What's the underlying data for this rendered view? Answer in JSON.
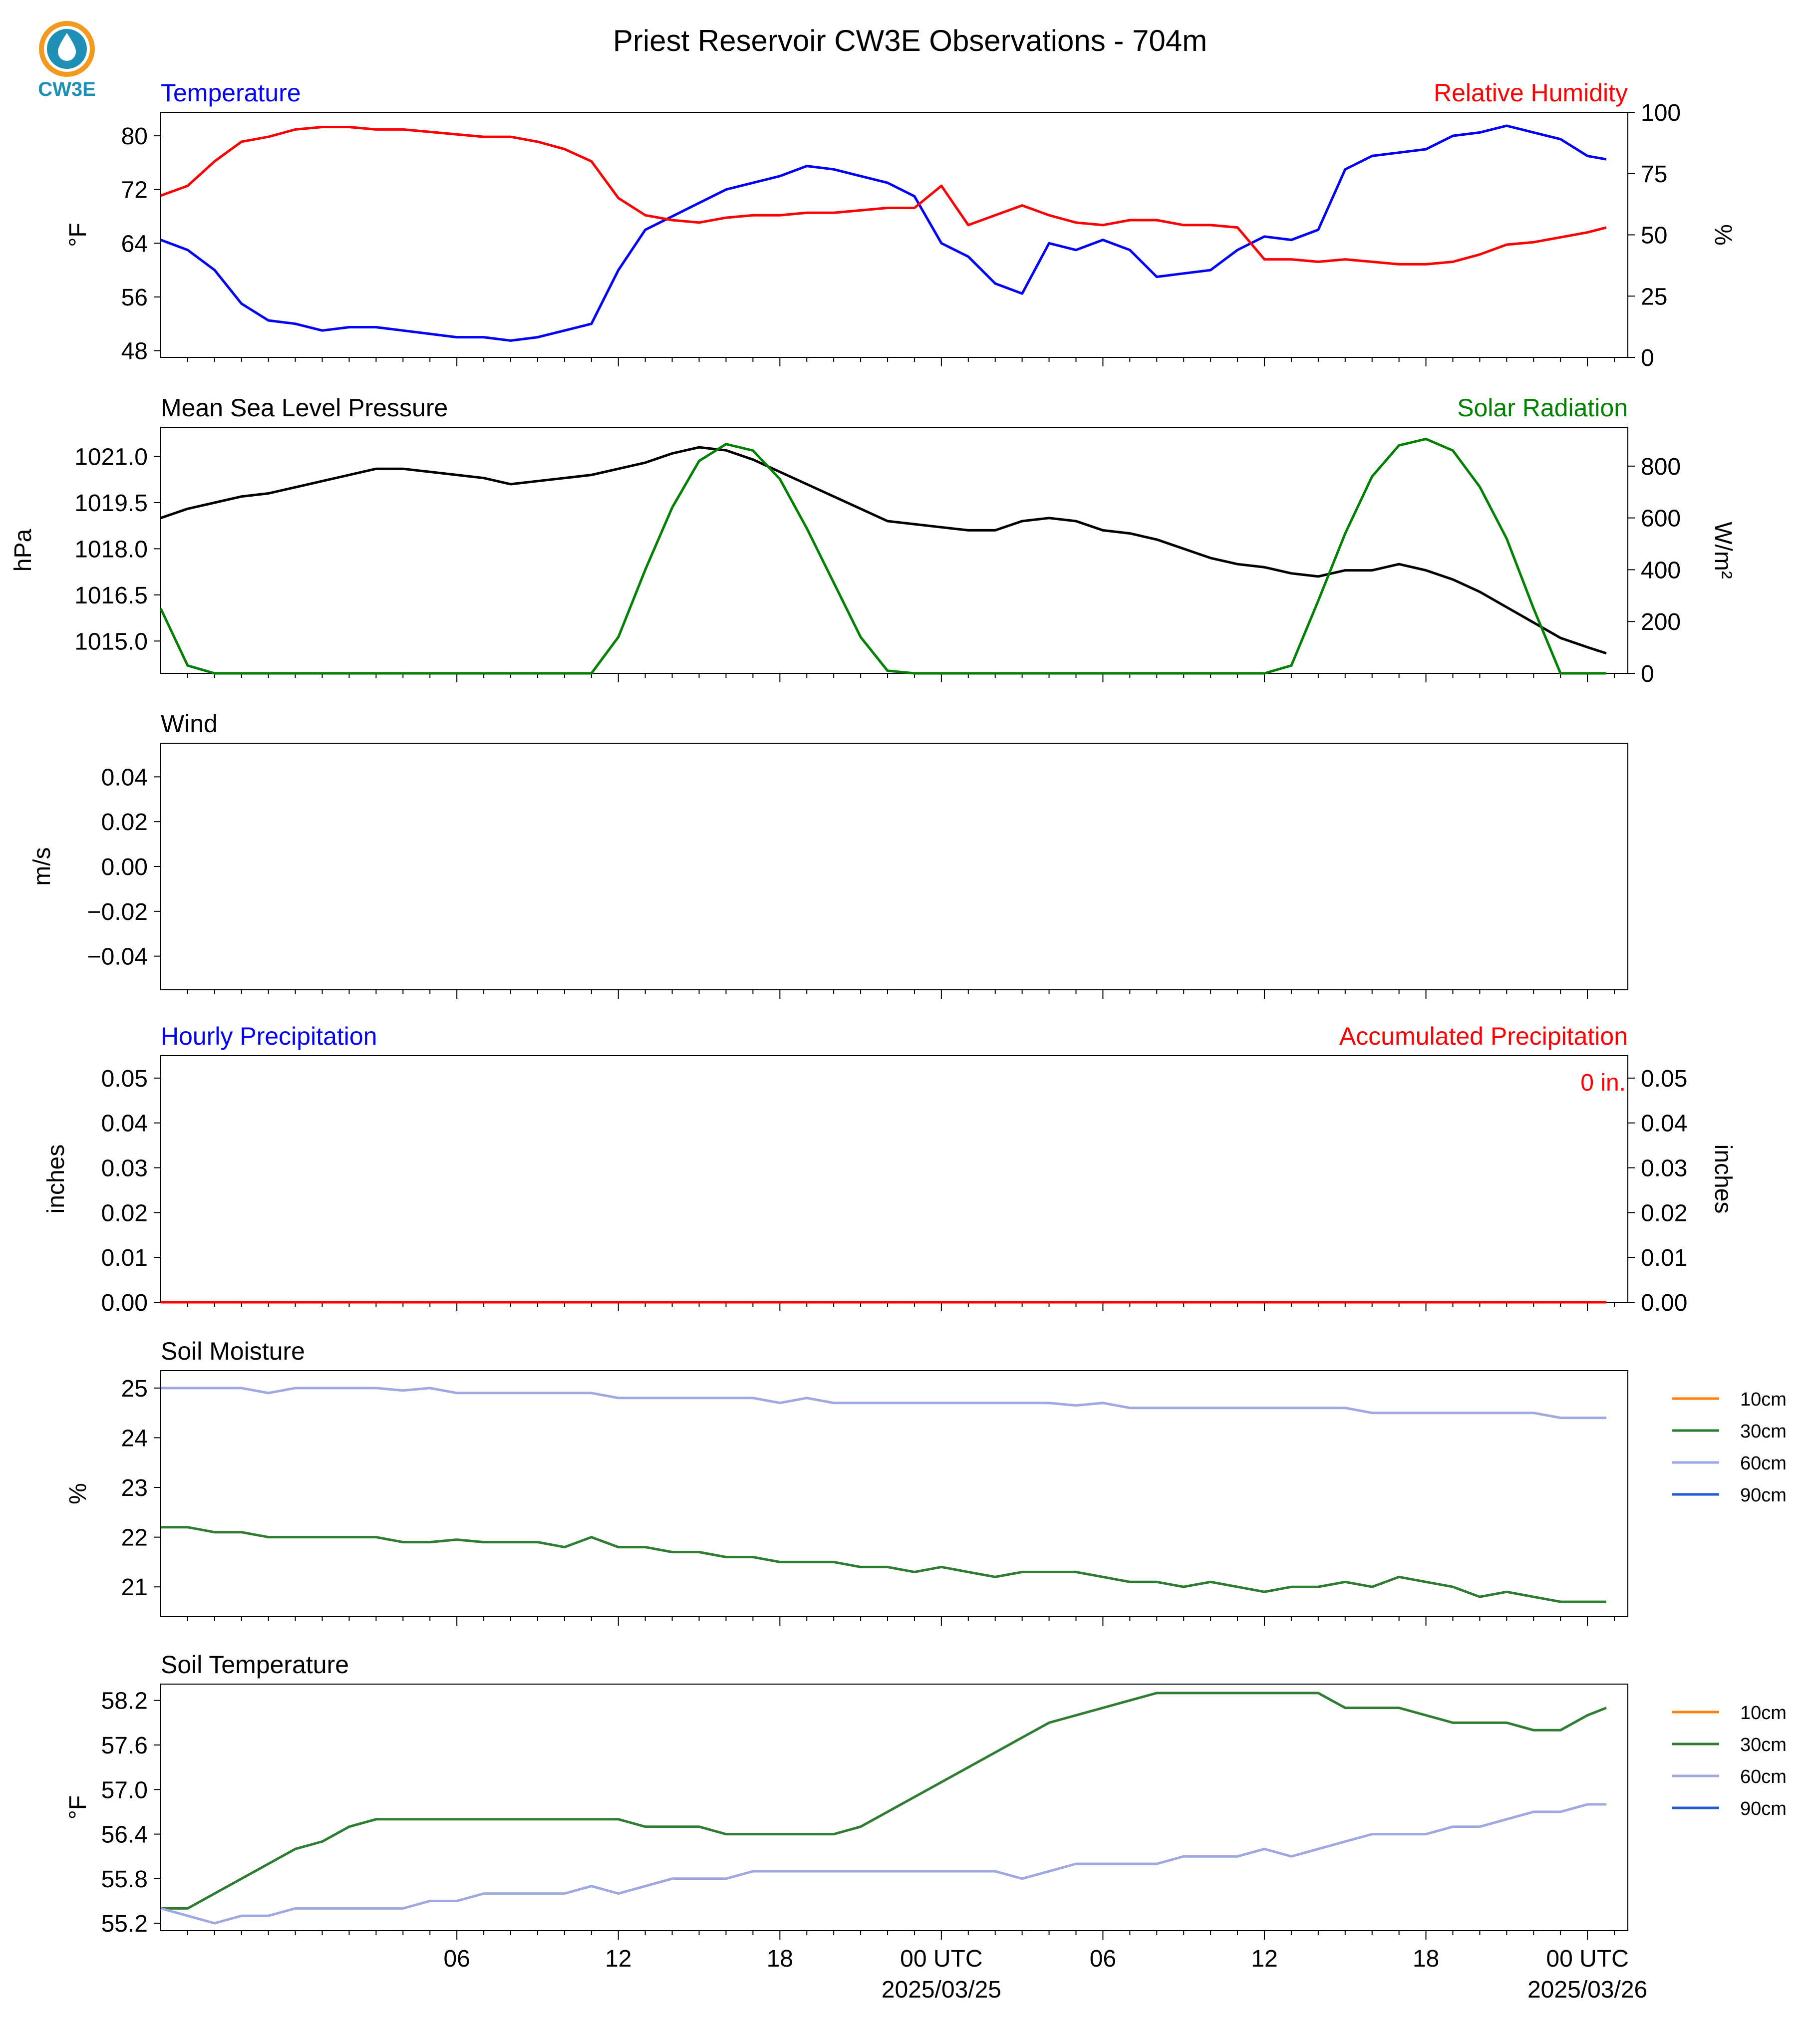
{
  "title": "Priest Reservoir CW3E Observations - 704m",
  "logo": {
    "text": "CW3E",
    "colors": {
      "ring": "#f29a1f",
      "body": "#1f8fb5",
      "text": "#1f8fb5"
    }
  },
  "colors": {
    "blue": "#0000ff",
    "red": "#ff0000",
    "green": "#008000",
    "black": "#000000",
    "orange": "#ff7f0e",
    "soil30": "#2e7d32",
    "soil60": "#9fa8e0",
    "soil90": "#1f5bd6"
  },
  "x_axis": {
    "ticks": [
      {
        "label": "06",
        "sub": ""
      },
      {
        "label": "12",
        "sub": ""
      },
      {
        "label": "18",
        "sub": ""
      },
      {
        "label": "00 UTC",
        "sub": "2025/03/25"
      },
      {
        "label": "06",
        "sub": ""
      },
      {
        "label": "12",
        "sub": ""
      },
      {
        "label": "18",
        "sub": ""
      },
      {
        "label": "00 UTC",
        "sub": "2025/03/26"
      }
    ]
  },
  "chart_data": [
    {
      "type": "line",
      "panel": "temperature_rh",
      "title_left": "Temperature",
      "title_right": "Relative Humidity",
      "ylabel": "°F",
      "ylabel_right": "%",
      "ylim": [
        47,
        83.5
      ],
      "yticks": [
        "48",
        "56",
        "64",
        "72",
        "80"
      ],
      "ylim_right": [
        0,
        100
      ],
      "yticks_right": [
        "0",
        "25",
        "50",
        "75",
        "100"
      ],
      "x_hours": [
        -5,
        -4,
        -3,
        -2,
        -1,
        0,
        1,
        2,
        3,
        4,
        5,
        6,
        7,
        8,
        9,
        10,
        11,
        12,
        13,
        14,
        15,
        16,
        17,
        18,
        19,
        20,
        21,
        22,
        23,
        24,
        25,
        26,
        27,
        28,
        29,
        30,
        31,
        32,
        33,
        34,
        35,
        36,
        37,
        38,
        39,
        40,
        41,
        42,
        43,
        44,
        45,
        46,
        47,
        48,
        48.7
      ],
      "series": [
        {
          "name": "Temperature",
          "color": "#0000ff",
          "axis": "left",
          "values": [
            64.5,
            63,
            60,
            55,
            52.5,
            52,
            51,
            51.5,
            51.5,
            51,
            50.5,
            50,
            50,
            49.5,
            50,
            51,
            52,
            60,
            66,
            68,
            70,
            72,
            73,
            74,
            75.5,
            75,
            74,
            73,
            71,
            64,
            62,
            58,
            56.5,
            64,
            63,
            64.5,
            63,
            59,
            59.5,
            60,
            63,
            65,
            64.5,
            66,
            75,
            77,
            77.5,
            78,
            80,
            80.5,
            81.5,
            80.5,
            79.5,
            77,
            76.5
          ]
        },
        {
          "name": "Relative Humidity",
          "color": "#ff0000",
          "axis": "right",
          "values": [
            66,
            70,
            80,
            88,
            90,
            93,
            94,
            94,
            93,
            93,
            92,
            91,
            90,
            90,
            88,
            85,
            80,
            65,
            58,
            56,
            55,
            57,
            58,
            58,
            59,
            59,
            60,
            61,
            61,
            70,
            54,
            58,
            62,
            58,
            55,
            54,
            56,
            56,
            54,
            54,
            53,
            40,
            40,
            39,
            40,
            39,
            38,
            38,
            39,
            42,
            46,
            47,
            49,
            51,
            53
          ]
        }
      ]
    },
    {
      "type": "line",
      "panel": "pressure_solar",
      "title_left": "Mean Sea Level Pressure",
      "title_right": "Solar Radiation",
      "ylabel": "hPa",
      "ylabel_right": "W/m²",
      "ylim": [
        1013.95,
        1021.95
      ],
      "yticks": [
        "1015.0",
        "1016.5",
        "1018.0",
        "1019.5",
        "1021.0"
      ],
      "ylim_right": [
        0,
        950
      ],
      "yticks_right": [
        "0",
        "200",
        "400",
        "600",
        "800"
      ],
      "x_hours": [
        -5,
        -4,
        -3,
        -2,
        -1,
        0,
        1,
        2,
        3,
        4,
        5,
        6,
        7,
        8,
        9,
        10,
        11,
        12,
        13,
        14,
        15,
        16,
        17,
        18,
        19,
        20,
        21,
        22,
        23,
        24,
        25,
        26,
        27,
        28,
        29,
        30,
        31,
        32,
        33,
        34,
        35,
        36,
        37,
        38,
        39,
        40,
        41,
        42,
        43,
        44,
        45,
        46,
        47,
        48,
        48.7
      ],
      "series": [
        {
          "name": "Mean Sea Level Pressure",
          "color": "#000000",
          "axis": "left",
          "values": [
            1019.0,
            1019.3,
            1019.5,
            1019.7,
            1019.8,
            1020.0,
            1020.2,
            1020.4,
            1020.6,
            1020.6,
            1020.5,
            1020.4,
            1020.3,
            1020.1,
            1020.2,
            1020.3,
            1020.4,
            1020.6,
            1020.8,
            1021.1,
            1021.3,
            1021.2,
            1020.9,
            1020.5,
            1020.1,
            1019.7,
            1019.3,
            1018.9,
            1018.8,
            1018.7,
            1018.6,
            1018.6,
            1018.9,
            1019.0,
            1018.9,
            1018.6,
            1018.5,
            1018.3,
            1018.0,
            1017.7,
            1017.5,
            1017.4,
            1017.2,
            1017.1,
            1017.3,
            1017.3,
            1017.5,
            1017.3,
            1017.0,
            1016.6,
            1016.1,
            1015.6,
            1015.1,
            1014.8,
            1014.6
          ]
        },
        {
          "name": "Solar Radiation",
          "color": "#008000",
          "axis": "right",
          "values": [
            250,
            30,
            0,
            0,
            0,
            0,
            0,
            0,
            0,
            0,
            0,
            0,
            0,
            0,
            0,
            0,
            0,
            140,
            400,
            640,
            820,
            885,
            860,
            750,
            560,
            350,
            140,
            10,
            0,
            0,
            0,
            0,
            0,
            0,
            0,
            0,
            0,
            0,
            0,
            0,
            0,
            0,
            30,
            280,
            540,
            760,
            880,
            905,
            860,
            720,
            520,
            250,
            0,
            0,
            0
          ]
        }
      ]
    },
    {
      "type": "line",
      "panel": "wind",
      "title_left": "Wind",
      "ylabel": "m/s",
      "ylim": [
        -0.055,
        0.055
      ],
      "yticks": [
        "−0.04",
        "−0.02",
        "0.00",
        "0.02",
        "0.04"
      ],
      "series": []
    },
    {
      "type": "line",
      "panel": "precipitation",
      "title_left": "Hourly Precipitation",
      "title_right": "Accumulated Precipitation",
      "annotation": "0 in.",
      "ylabel": "inches",
      "ylabel_right": "inches",
      "ylim": [
        0,
        0.055
      ],
      "yticks": [
        "0.00",
        "0.01",
        "0.02",
        "0.03",
        "0.04",
        "0.05"
      ],
      "yticks_right": [
        "0.00",
        "0.01",
        "0.02",
        "0.03",
        "0.04",
        "0.05"
      ],
      "x_hours": [
        -5,
        48.7
      ],
      "series": [
        {
          "name": "Hourly Precipitation",
          "color": "#0000ff",
          "values": [
            0,
            0
          ]
        },
        {
          "name": "Accumulated Precipitation",
          "color": "#ff0000",
          "values": [
            0,
            0
          ]
        }
      ]
    },
    {
      "type": "line",
      "panel": "soil_moisture",
      "title_left": "Soil Moisture",
      "ylabel": "%",
      "ylim": [
        20.4,
        25.35
      ],
      "yticks": [
        "21",
        "22",
        "23",
        "24",
        "25"
      ],
      "legend": [
        "10cm",
        "30cm",
        "60cm",
        "90cm"
      ],
      "legend_colors": [
        "#ff7f0e",
        "#2e7d32",
        "#9fa8e0",
        "#1f5bd6"
      ],
      "x_hours": [
        -5,
        -4,
        -3,
        -2,
        -1,
        0,
        1,
        2,
        3,
        4,
        5,
        6,
        7,
        8,
        9,
        10,
        11,
        12,
        13,
        14,
        15,
        16,
        17,
        18,
        19,
        20,
        21,
        22,
        23,
        24,
        25,
        26,
        27,
        28,
        29,
        30,
        31,
        32,
        33,
        34,
        35,
        36,
        37,
        38,
        39,
        40,
        41,
        42,
        43,
        44,
        45,
        46,
        47,
        48,
        48.7
      ],
      "series": [
        {
          "name": "30cm",
          "color": "#2e7d32",
          "values": [
            22.2,
            22.2,
            22.1,
            22.1,
            22.0,
            22.0,
            22.0,
            22.0,
            22.0,
            21.9,
            21.9,
            21.95,
            21.9,
            21.9,
            21.9,
            21.8,
            22.0,
            21.8,
            21.8,
            21.7,
            21.7,
            21.6,
            21.6,
            21.5,
            21.5,
            21.5,
            21.4,
            21.4,
            21.3,
            21.4,
            21.3,
            21.2,
            21.3,
            21.3,
            21.3,
            21.2,
            21.1,
            21.1,
            21.0,
            21.1,
            21.0,
            20.9,
            21.0,
            21.0,
            21.1,
            21.0,
            21.2,
            21.1,
            21.0,
            20.8,
            20.9,
            20.8,
            20.7,
            20.7,
            20.7
          ]
        },
        {
          "name": "60cm",
          "color": "#9fa8e0",
          "values": [
            25.0,
            25.0,
            25.0,
            25.0,
            24.9,
            25.0,
            25.0,
            25.0,
            25.0,
            24.95,
            25.0,
            24.9,
            24.9,
            24.9,
            24.9,
            24.9,
            24.9,
            24.8,
            24.8,
            24.8,
            24.8,
            24.8,
            24.8,
            24.7,
            24.8,
            24.7,
            24.7,
            24.7,
            24.7,
            24.7,
            24.7,
            24.7,
            24.7,
            24.7,
            24.65,
            24.7,
            24.6,
            24.6,
            24.6,
            24.6,
            24.6,
            24.6,
            24.6,
            24.6,
            24.6,
            24.5,
            24.5,
            24.5,
            24.5,
            24.5,
            24.5,
            24.5,
            24.4,
            24.4,
            24.4
          ]
        }
      ]
    },
    {
      "type": "line",
      "panel": "soil_temperature",
      "title_left": "Soil Temperature",
      "ylabel": "°F",
      "ylim": [
        55.1,
        58.42
      ],
      "yticks": [
        "55.2",
        "55.8",
        "56.4",
        "57.0",
        "57.6",
        "58.2"
      ],
      "legend": [
        "10cm",
        "30cm",
        "60cm",
        "90cm"
      ],
      "legend_colors": [
        "#ff7f0e",
        "#2e7d32",
        "#9fa8e0",
        "#1f5bd6"
      ],
      "x_hours": [
        -5,
        -4,
        -3,
        -2,
        -1,
        0,
        1,
        2,
        3,
        4,
        5,
        6,
        7,
        8,
        9,
        10,
        11,
        12,
        13,
        14,
        15,
        16,
        17,
        18,
        19,
        20,
        21,
        22,
        23,
        24,
        25,
        26,
        27,
        28,
        29,
        30,
        31,
        32,
        33,
        34,
        35,
        36,
        37,
        38,
        39,
        40,
        41,
        42,
        43,
        44,
        45,
        46,
        47,
        48,
        48.7
      ],
      "series": [
        {
          "name": "30cm",
          "color": "#2e7d32",
          "values": [
            55.4,
            55.4,
            55.6,
            55.8,
            56.0,
            56.2,
            56.3,
            56.5,
            56.6,
            56.6,
            56.6,
            56.6,
            56.6,
            56.6,
            56.6,
            56.6,
            56.6,
            56.6,
            56.5,
            56.5,
            56.5,
            56.4,
            56.4,
            56.4,
            56.4,
            56.4,
            56.5,
            56.7,
            56.9,
            57.1,
            57.3,
            57.5,
            57.7,
            57.9,
            58.0,
            58.1,
            58.2,
            58.3,
            58.3,
            58.3,
            58.3,
            58.3,
            58.3,
            58.3,
            58.1,
            58.1,
            58.1,
            58.0,
            57.9,
            57.9,
            57.9,
            57.8,
            57.8,
            58.0,
            58.1
          ]
        },
        {
          "name": "60cm",
          "color": "#9fa8e0",
          "values": [
            55.4,
            55.3,
            55.2,
            55.3,
            55.3,
            55.4,
            55.4,
            55.4,
            55.4,
            55.4,
            55.5,
            55.5,
            55.6,
            55.6,
            55.6,
            55.6,
            55.7,
            55.6,
            55.7,
            55.8,
            55.8,
            55.8,
            55.9,
            55.9,
            55.9,
            55.9,
            55.9,
            55.9,
            55.9,
            55.9,
            55.9,
            55.9,
            55.8,
            55.9,
            56.0,
            56.0,
            56.0,
            56.0,
            56.1,
            56.1,
            56.1,
            56.2,
            56.1,
            56.2,
            56.3,
            56.4,
            56.4,
            56.4,
            56.5,
            56.5,
            56.6,
            56.7,
            56.7,
            56.8,
            56.8
          ]
        }
      ]
    }
  ]
}
